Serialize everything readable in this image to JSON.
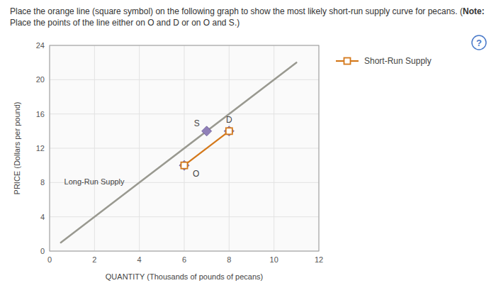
{
  "chart_data": {
    "type": "line",
    "title": [
      "Place the orange line (square symbol) on the following graph to show the most likely short-run supply curve for pecans. (",
      "Note:",
      " Place the points of the",
      "line either on O and D or on O and S.)"
    ],
    "x_label": "QUANTITY (Thousands of pounds of pecans)",
    "y_label": "PRICE (Dollars per pound)",
    "xlim": [
      0,
      12
    ],
    "ylim": [
      0,
      24
    ],
    "xticks": [
      0,
      2,
      4,
      6,
      8,
      10,
      12
    ],
    "yticks": [
      0,
      4,
      8,
      12,
      16,
      20,
      24
    ],
    "grid": true,
    "legend": "right",
    "series": [
      {
        "name": "Short-Run Supply",
        "type": "line",
        "color": "#d4781a",
        "marker": "square",
        "x": [
          6,
          8
        ],
        "values": [
          10,
          14
        ]
      }
    ],
    "annotations": [
      {
        "type": "line",
        "text": "Long-Run Supply",
        "color": "#999990",
        "x": [
          0.5,
          11.0
        ],
        "y": [
          1.0,
          22.0
        ]
      },
      {
        "type": "point",
        "text": "O",
        "marker": "diamond",
        "color": "#9080b8",
        "x": 6,
        "y": 10
      },
      {
        "type": "point",
        "text": "S",
        "marker": "diamond",
        "color": "#9080b8",
        "x": 7,
        "y": 14
      },
      {
        "type": "point",
        "text": "D",
        "marker": "diamond",
        "color": "#9080b8",
        "x": 8,
        "y": 14
      },
      {
        "type": "icon",
        "text": "?",
        "color": "#4a7ac9"
      }
    ]
  }
}
